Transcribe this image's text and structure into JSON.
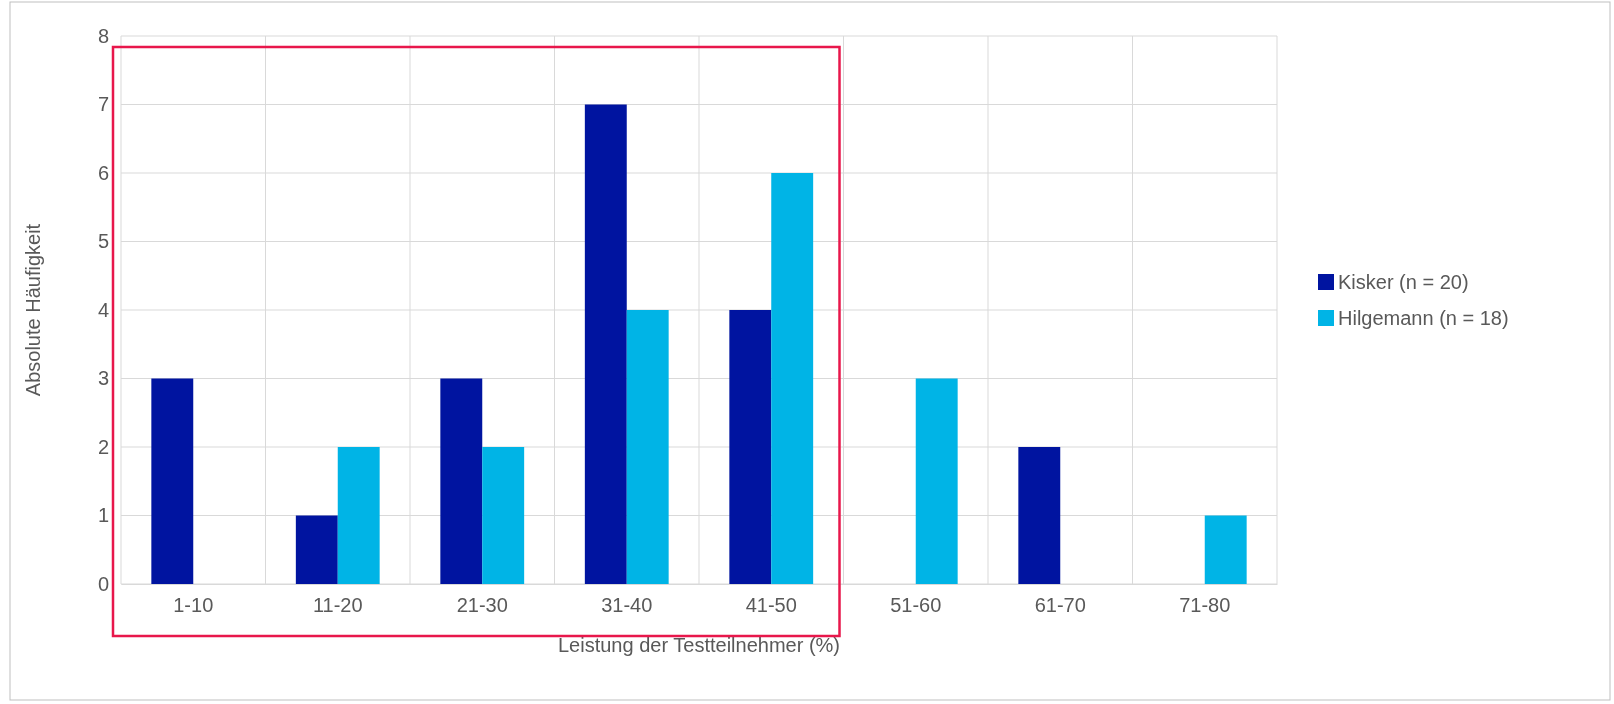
{
  "chart_data": {
    "type": "bar",
    "xlabel": "Leistung der Testteilnehmer (%)",
    "ylabel": "Absolute Häufigkeit",
    "categories": [
      "1-10",
      "11-20",
      "21-30",
      "31-40",
      "41-50",
      "51-60",
      "61-70",
      "71-80"
    ],
    "series": [
      {
        "name": "Kisker (n =  20)",
        "color": "#0014a0",
        "values": [
          3,
          1,
          3,
          7,
          4,
          0,
          2,
          0
        ]
      },
      {
        "name": "Hilgemann (n = 18)",
        "color": "#00b4e6",
        "values": [
          0,
          2,
          2,
          4,
          6,
          3,
          0,
          1
        ]
      }
    ],
    "ylim": [
      0,
      8
    ],
    "yticks": [
      0,
      1,
      2,
      3,
      4,
      5,
      6,
      7,
      8
    ],
    "grid": true,
    "legend": "right"
  }
}
